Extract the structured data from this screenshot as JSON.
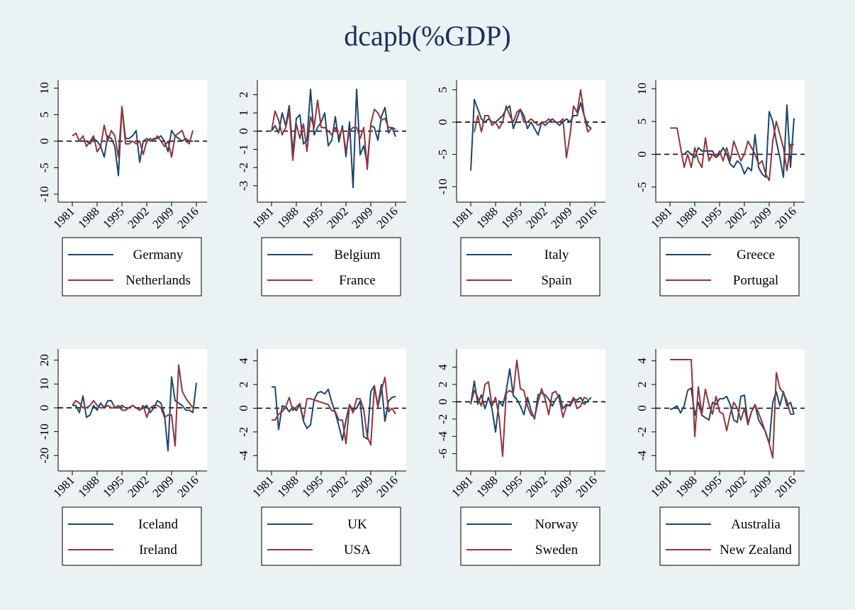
{
  "title": "dcapb(%GDP)",
  "chart_data": [
    {
      "type": "line",
      "x": [
        1981,
        1982,
        1983,
        1984,
        1985,
        1986,
        1987,
        1988,
        1989,
        1990,
        1991,
        1992,
        1993,
        1994,
        1995,
        1996,
        1997,
        1998,
        1999,
        2000,
        2001,
        2002,
        2003,
        2004,
        2005,
        2006,
        2007,
        2008,
        2009,
        2010,
        2011,
        2012,
        2013,
        2014,
        2015,
        2016
      ],
      "xlim": [
        1977,
        2019
      ],
      "xticks": [
        1981,
        1988,
        1995,
        2002,
        2009,
        2016
      ],
      "ylim": [
        -11.5,
        11.5
      ],
      "yticks": [
        -10,
        -5,
        0,
        5,
        10
      ],
      "refline": 0,
      "series": [
        {
          "name": "Germany",
          "color": "#1a476f",
          "values": [
            null,
            0,
            0,
            0,
            0,
            -0.5,
            0.5,
            0,
            -1,
            -3,
            1,
            0.5,
            -1,
            -6.5,
            6.5,
            0.5,
            0.5,
            1,
            2,
            -4,
            0,
            0.5,
            0,
            0.5,
            0.5,
            1,
            0,
            -2,
            2,
            1,
            0.5,
            0,
            0.5,
            0,
            0,
            null
          ]
        },
        {
          "name": "Netherlands",
          "color": "#90353b",
          "values": [
            1,
            1.5,
            0,
            1,
            -1,
            0,
            1,
            -2,
            -1,
            3,
            0,
            2,
            1,
            -3,
            6.5,
            -0.5,
            -0.5,
            0,
            -0.5,
            0,
            -2.5,
            0,
            0.5,
            0,
            1,
            0,
            -1,
            0,
            -3,
            1,
            1.5,
            2,
            0,
            -0.5,
            2,
            null
          ]
        }
      ]
    },
    {
      "type": "line",
      "x": [
        1981,
        1982,
        1983,
        1984,
        1985,
        1986,
        1987,
        1988,
        1989,
        1990,
        1991,
        1992,
        1993,
        1994,
        1995,
        1996,
        1997,
        1998,
        1999,
        2000,
        2001,
        2002,
        2003,
        2004,
        2005,
        2006,
        2007,
        2008,
        2009,
        2010,
        2011,
        2012,
        2013,
        2014,
        2015,
        2016
      ],
      "xlim": [
        1977,
        2019
      ],
      "xticks": [
        1981,
        1988,
        1995,
        2002,
        2009,
        2016
      ],
      "ylim": [
        -3.9,
        2.8
      ],
      "yticks": [
        -3,
        -2,
        -1,
        0,
        1,
        2
      ],
      "refline": 0,
      "series": [
        {
          "name": "Belgium",
          "color": "#1a476f",
          "values": [
            0,
            0.3,
            -0.1,
            1,
            0.3,
            1.4,
            -1.2,
            0.7,
            0.9,
            -0.7,
            -0.5,
            2.3,
            -0.2,
            0.2,
            0.5,
            1,
            -0.8,
            -0.5,
            0.8,
            -0.6,
            0.3,
            -1.4,
            0.5,
            -3.1,
            2.3,
            -1.3,
            -0.8,
            -1.8,
            0.3,
            0.2,
            -0.5,
            0.8,
            1.3,
            -0.1,
            0.2,
            -0.3
          ]
        },
        {
          "name": "France",
          "color": "#90353b",
          "values": [
            0,
            1.1,
            0.6,
            -0.2,
            0.2,
            1.1,
            -1.6,
            0.4,
            -0.4,
            0.4,
            -1.1,
            0.8,
            0.2,
            1.7,
            0.2,
            0.2,
            0,
            -0.2,
            0.2,
            -0.3,
            0.2,
            -1.1,
            0,
            0.2,
            0.2,
            -0.4,
            0.2,
            -2.1,
            0.4,
            1.2,
            1,
            0.6,
            0.7,
            0.2,
            0.2,
            0.1
          ]
        }
      ]
    },
    {
      "type": "line",
      "x": [
        1981,
        1982,
        1983,
        1984,
        1985,
        1986,
        1987,
        1988,
        1989,
        1990,
        1991,
        1992,
        1993,
        1994,
        1995,
        1996,
        1997,
        1998,
        1999,
        2000,
        2001,
        2002,
        2003,
        2004,
        2005,
        2006,
        2007,
        2008,
        2009,
        2010,
        2011,
        2012,
        2013,
        2014,
        2015,
        2016
      ],
      "xlim": [
        1977,
        2019
      ],
      "xticks": [
        1981,
        1988,
        1995,
        2002,
        2009,
        2016
      ],
      "ylim": [
        -12.4,
        6.5
      ],
      "yticks": [
        -10,
        -5,
        0,
        5
      ],
      "refline": 0,
      "series": [
        {
          "name": "Italy",
          "color": "#1a476f",
          "values": [
            -7.5,
            3.5,
            2,
            0.5,
            0,
            0.5,
            0,
            0,
            0.5,
            1,
            2,
            2.5,
            -1,
            0.5,
            2,
            1,
            -1,
            0,
            -1,
            -2,
            0,
            -0.5,
            0,
            0.5,
            0,
            -0.5,
            0,
            0.5,
            0,
            1,
            1,
            3,
            1,
            -0.5,
            -1,
            null
          ]
        },
        {
          "name": "Spain",
          "color": "#90353b",
          "values": [
            null,
            -1.5,
            1,
            -1.5,
            1,
            1,
            -0.5,
            0,
            -1,
            0,
            2.5,
            1,
            0,
            1.5,
            2,
            0,
            0,
            0.5,
            0,
            -0.5,
            0,
            0,
            0.5,
            0,
            0,
            0,
            0.5,
            -5.5,
            -2,
            2.5,
            1.5,
            5,
            1,
            -1.5,
            -1,
            null
          ]
        }
      ]
    },
    {
      "type": "line",
      "x": [
        1981,
        1982,
        1983,
        1984,
        1985,
        1986,
        1987,
        1988,
        1989,
        1990,
        1991,
        1992,
        1993,
        1994,
        1995,
        1996,
        1997,
        1998,
        1999,
        2000,
        2001,
        2002,
        2003,
        2004,
        2005,
        2006,
        2007,
        2008,
        2009,
        2010,
        2011,
        2012,
        2013,
        2014,
        2015,
        2016
      ],
      "xlim": [
        1977,
        2019
      ],
      "xticks": [
        1981,
        1988,
        1995,
        2002,
        2009,
        2016
      ],
      "ylim": [
        -7.3,
        11.3
      ],
      "yticks": [
        -5,
        0,
        5,
        10
      ],
      "refline": 0,
      "series": [
        {
          "name": "Greece",
          "color": "#1a476f",
          "values": [
            null,
            null,
            null,
            null,
            0,
            0.5,
            0,
            -0.5,
            1,
            0.5,
            0.5,
            0.5,
            0.5,
            -0.5,
            0,
            1,
            0,
            -1.5,
            -2,
            -1,
            -1.5,
            -3,
            -2,
            -2.5,
            3,
            -2,
            -3,
            -3.5,
            6.5,
            5,
            2,
            -0.5,
            -3.5,
            7.5,
            -2,
            5.5
          ]
        },
        {
          "name": "Portugal",
          "color": "#90353b",
          "values": [
            4,
            4,
            4,
            1,
            -2,
            0,
            -2,
            1,
            -1,
            -2,
            2.5,
            -1,
            0,
            -0.5,
            0.5,
            -1,
            1,
            -1,
            2,
            0.5,
            -1,
            0,
            2,
            1,
            0,
            -1.5,
            -1,
            -3,
            -4,
            2,
            5,
            3,
            1,
            -2.5,
            1.5,
            1.5
          ]
        }
      ]
    },
    {
      "type": "line",
      "x": [
        1981,
        1982,
        1983,
        1984,
        1985,
        1986,
        1987,
        1988,
        1989,
        1990,
        1991,
        1992,
        1993,
        1994,
        1995,
        1996,
        1997,
        1998,
        1999,
        2000,
        2001,
        2002,
        2003,
        2004,
        2005,
        2006,
        2007,
        2008,
        2009,
        2010,
        2011,
        2012,
        2013,
        2014,
        2015,
        2016
      ],
      "xlim": [
        1977,
        2019
      ],
      "xticks": [
        1981,
        1988,
        1995,
        2002,
        2009,
        2016
      ],
      "ylim": [
        -26.5,
        24.7
      ],
      "yticks": [
        -20,
        -10,
        0,
        10,
        20
      ],
      "refline": 0,
      "series": [
        {
          "name": "Iceland",
          "color": "#1a476f",
          "values": [
            1,
            1,
            -2,
            5,
            -4,
            -3,
            1,
            -1,
            2,
            0,
            3,
            3,
            0,
            0,
            1,
            0,
            0,
            1,
            0,
            -1,
            0,
            1,
            -2,
            0,
            3,
            2,
            -3,
            -18,
            13,
            3,
            2,
            1,
            -1,
            -1,
            -2,
            10.5
          ]
        },
        {
          "name": "Ireland",
          "color": "#90353b",
          "values": [
            1,
            3,
            2,
            0,
            0,
            1,
            3,
            1,
            0,
            0,
            1,
            0,
            0,
            1,
            -1,
            -1,
            0,
            1,
            0,
            -1,
            1,
            -4,
            0,
            1,
            1,
            0,
            -4,
            -3,
            -3,
            -16,
            18,
            7,
            4,
            2,
            0,
            null
          ]
        }
      ]
    },
    {
      "type": "line",
      "x": [
        1981,
        1982,
        1983,
        1984,
        1985,
        1986,
        1987,
        1988,
        1989,
        1990,
        1991,
        1992,
        1993,
        1994,
        1995,
        1996,
        1997,
        1998,
        1999,
        2000,
        2001,
        2002,
        2003,
        2004,
        2005,
        2006,
        2007,
        2008,
        2009,
        2010,
        2011,
        2012,
        2013,
        2014,
        2015,
        2016
      ],
      "xlim": [
        1977,
        2019
      ],
      "xticks": [
        1981,
        1988,
        1995,
        2002,
        2009,
        2016
      ],
      "ylim": [
        -5.3,
        5
      ],
      "yticks": [
        -4,
        -2,
        0,
        2,
        4
      ],
      "refline": 0,
      "series": [
        {
          "name": "UK",
          "color": "#1a476f",
          "values": [
            1.8,
            1.8,
            -1.8,
            0.2,
            0.1,
            -0.3,
            0.1,
            -0.2,
            0.3,
            -1.1,
            -1.7,
            -1.4,
            0.7,
            1.3,
            1.4,
            1.2,
            1.6,
            0.5,
            -0.4,
            -1.5,
            -2.7,
            -1,
            0.3,
            -0.2,
            0,
            0.6,
            -2.4,
            -2.6,
            1.4,
            1.9,
            0.2,
            2,
            -1.1,
            0.6,
            0.9,
            1
          ]
        },
        {
          "name": "USA",
          "color": "#90353b",
          "values": [
            -1,
            -1,
            -0.5,
            -0.3,
            0.1,
            0.9,
            -0.2,
            0.1,
            0.4,
            -1,
            0.8,
            0.8,
            0.7,
            0.6,
            0.5,
            0.4,
            0.3,
            -0.2,
            -0.3,
            -1,
            -1,
            -3,
            0.3,
            -0.4,
            0.8,
            0.8,
            -0.1,
            -2.4,
            -3.1,
            1.8,
            0.1,
            1.5,
            2.6,
            -0.3,
            0,
            -0.5
          ]
        }
      ]
    },
    {
      "type": "line",
      "x": [
        1981,
        1982,
        1983,
        1984,
        1985,
        1986,
        1987,
        1988,
        1989,
        1990,
        1991,
        1992,
        1993,
        1994,
        1995,
        1996,
        1997,
        1998,
        1999,
        2000,
        2001,
        2002,
        2003,
        2004,
        2005,
        2006,
        2007,
        2008,
        2009,
        2010,
        2011,
        2012,
        2013,
        2014,
        2015,
        2016
      ],
      "xlim": [
        1977,
        2019
      ],
      "xticks": [
        1981,
        1988,
        1995,
        2002,
        2009,
        2016
      ],
      "ylim": [
        -8,
        6.1
      ],
      "yticks": [
        -6,
        -4,
        -2,
        0,
        2,
        4
      ],
      "refline": 0,
      "series": [
        {
          "name": "Norway",
          "color": "#1a476f",
          "values": [
            -0.3,
            2.4,
            -0.3,
            0.8,
            -0.8,
            0.5,
            -0.8,
            -3.5,
            0.1,
            -0.5,
            1.2,
            3.8,
            0.7,
            0.3,
            -0.5,
            -1.5,
            0.5,
            -1,
            -2,
            0.8,
            1,
            0.8,
            0.3,
            -0.5,
            0.3,
            0.8,
            -0.8,
            -0.3,
            -0.5,
            0.3,
            0.2,
            0.5,
            -0.3,
            0.1,
            0.5,
            null
          ]
        },
        {
          "name": "Sweden",
          "color": "#90353b",
          "values": [
            -0.2,
            1.3,
            0.5,
            -0.5,
            2,
            2.3,
            -0.5,
            0.5,
            -1.8,
            -6.3,
            1,
            1.3,
            1,
            4.8,
            1.5,
            1.3,
            -0.5,
            -1.5,
            -1.8,
            0,
            1.5,
            0.3,
            -1.5,
            1,
            1.2,
            0.3,
            -1.8,
            -0.5,
            -0.3,
            0.5,
            -0.8,
            -0.5,
            0.5,
            0.3,
            null,
            null
          ]
        }
      ]
    },
    {
      "type": "line",
      "x": [
        1981,
        1982,
        1983,
        1984,
        1985,
        1986,
        1987,
        1988,
        1989,
        1990,
        1991,
        1992,
        1993,
        1994,
        1995,
        1996,
        1997,
        1998,
        1999,
        2000,
        2001,
        2002,
        2003,
        2004,
        2005,
        2006,
        2007,
        2008,
        2009,
        2010,
        2011,
        2012,
        2013,
        2014,
        2015,
        2016
      ],
      "xlim": [
        1977,
        2019
      ],
      "xticks": [
        1981,
        1988,
        1995,
        2002,
        2009,
        2016
      ],
      "ylim": [
        -5.3,
        5
      ],
      "yticks": [
        -4,
        -2,
        0,
        2,
        4
      ],
      "refline": 0,
      "series": [
        {
          "name": "Australia",
          "color": "#1a476f",
          "values": [
            -0.1,
            0,
            0.2,
            -0.4,
            0.2,
            1.5,
            1.7,
            -0.6,
            0.5,
            -0.6,
            -0.8,
            -1,
            0.5,
            0.3,
            0.8,
            0.8,
            1,
            0.3,
            -1,
            -1.2,
            1,
            1.1,
            -1.3,
            -0.3,
            0.3,
            -1,
            -1.5,
            -2,
            -3,
            0.5,
            1.4,
            0.2,
            1.4,
            0.2,
            0.5,
            -0.5
          ]
        },
        {
          "name": "New Zealand",
          "color": "#90353b",
          "values": [
            4.1,
            4.1,
            4.1,
            4.1,
            4.1,
            4.1,
            4.1,
            -2.4,
            1.8,
            -0.5,
            1.6,
            0.3,
            -0.5,
            1,
            -0.3,
            -0.5,
            -1.9,
            -0.5,
            0.5,
            0,
            -1,
            0,
            -1.4,
            -0.3,
            0.3,
            -0.4,
            -1.2,
            -2.1,
            -3,
            -4.2,
            3,
            1.7,
            1.3,
            0.6,
            -0.5,
            -0.5
          ]
        }
      ]
    }
  ]
}
